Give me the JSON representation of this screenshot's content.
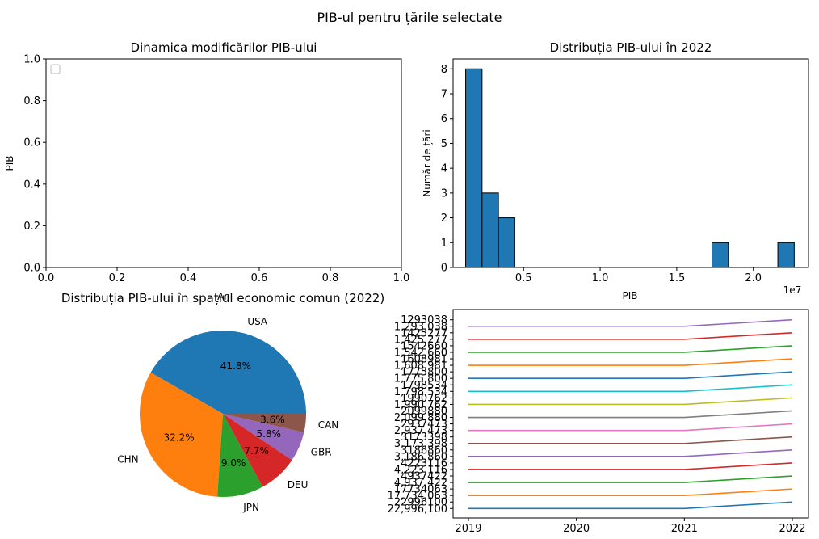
{
  "figure": {
    "title": "PIB-ul pentru țările selectate"
  },
  "chart_data": [
    {
      "type": "line",
      "title": "Dinamica modificărilor PIB-ului",
      "xlabel": "An",
      "ylabel": "PIB",
      "xlim": [
        0,
        1
      ],
      "ylim": [
        0,
        1
      ],
      "x_ticks": [
        "0.0",
        "0.2",
        "0.4",
        "0.6",
        "0.8",
        "1.0"
      ],
      "y_ticks": [
        "0.0",
        "0.2",
        "0.4",
        "0.6",
        "0.8",
        "1.0"
      ],
      "legend": "upper-left",
      "series": []
    },
    {
      "type": "bar",
      "title": "Distribuția PIB-ului în 2022",
      "xlabel": "PIB",
      "ylabel": "Număr de țări",
      "x_offset_text": "1e7",
      "xlim": [
        0.4,
        23.6
      ],
      "ylim": [
        0,
        8.4
      ],
      "x_ticks": [
        {
          "value": 5,
          "label": "0.5"
        },
        {
          "value": 10,
          "label": "1.0"
        },
        {
          "value": 15,
          "label": "1.5"
        },
        {
          "value": 20,
          "label": "2.0"
        }
      ],
      "y_ticks": [
        0,
        1,
        2,
        3,
        4,
        5,
        6,
        7,
        8
      ],
      "bin_width": 1.07,
      "bins": [
        {
          "start": 1.22,
          "count": 8
        },
        {
          "start": 2.29,
          "count": 3
        },
        {
          "start": 3.36,
          "count": 2
        },
        {
          "start": 17.3,
          "count": 1
        },
        {
          "start": 21.6,
          "count": 1
        }
      ],
      "color": "#1f77b4"
    },
    {
      "type": "pie",
      "title": "Distribuția PIB-ului în spațiul economic comun (2022)",
      "labels": [
        "USA",
        "CHN",
        "JPN",
        "DEU",
        "GBR",
        "CAN"
      ],
      "values": [
        41.8,
        32.2,
        9.0,
        7.7,
        5.8,
        3.6
      ],
      "pct_labels": [
        "41.8%",
        "32.2%",
        "9.0%",
        "7.7%",
        "5.8%",
        "3.6%"
      ],
      "colors": [
        "#1f77b4",
        "#ff7f0e",
        "#2ca02c",
        "#d62728",
        "#9467bd",
        "#8c564b"
      ]
    },
    {
      "type": "line",
      "x": [
        "2019",
        "2020",
        "2021",
        "2022"
      ],
      "y_ticks": [
        "1293038",
        "1,293,038",
        "1425277",
        "1,425,277",
        "1542660",
        "1,542,660",
        "1608981",
        "1,608,981",
        "1775800",
        "1,775,800",
        "1798534",
        "1,798,534",
        "1990762",
        "1,990,762",
        "2099880",
        "2,099,880",
        "2937473",
        "2,937,473",
        "3173398",
        "3,173,398",
        "3186860",
        "3,186,860",
        "4223116",
        "4,223,116",
        "4937422",
        "4,937,422",
        "17734063",
        "17,734,063",
        "22996100",
        "22,996,100"
      ],
      "series": [
        {
          "color": "#1f77b4",
          "values": [
            "22,996,100",
            "22,996,100",
            "22,996,100",
            "22996100"
          ]
        },
        {
          "color": "#ff7f0e",
          "values": [
            "17,734,063",
            "17,734,063",
            "17,734,063",
            "17734063"
          ]
        },
        {
          "color": "#2ca02c",
          "values": [
            "4,937,422",
            "4,937,422",
            "4,937,422",
            "4937422"
          ]
        },
        {
          "color": "#d62728",
          "values": [
            "4,223,116",
            "4,223,116",
            "4,223,116",
            "4223116"
          ]
        },
        {
          "color": "#9467bd",
          "values": [
            "3,186,860",
            "3,186,860",
            "3,186,860",
            "3186860"
          ]
        },
        {
          "color": "#8c564b",
          "values": [
            "3,173,398",
            "3,173,398",
            "3,173,398",
            "3173398"
          ]
        },
        {
          "color": "#e377c2",
          "values": [
            "2,937,473",
            "2,937,473",
            "2,937,473",
            "2937473"
          ]
        },
        {
          "color": "#7f7f7f",
          "values": [
            "2,099,880",
            "2,099,880",
            "2,099,880",
            "2099880"
          ]
        },
        {
          "color": "#bcbd22",
          "values": [
            "1,990,762",
            "1,990,762",
            "1,990,762",
            "1990762"
          ]
        },
        {
          "color": "#17becf",
          "values": [
            "1,798,534",
            "1,798,534",
            "1,798,534",
            "1798534"
          ]
        },
        {
          "color": "#1f77b4",
          "values": [
            "1,775,800",
            "1,775,800",
            "1,775,800",
            "1775800"
          ]
        },
        {
          "color": "#ff7f0e",
          "values": [
            "1,608,981",
            "1,608,981",
            "1,608,981",
            "1608981"
          ]
        },
        {
          "color": "#2ca02c",
          "values": [
            "1,542,660",
            "1,542,660",
            "1,542,660",
            "1542660"
          ]
        },
        {
          "color": "#d62728",
          "values": [
            "1,425,277",
            "1,425,277",
            "1,425,277",
            "1425277"
          ]
        },
        {
          "color": "#9467bd",
          "values": [
            "1,293,038",
            "1,293,038",
            "1,293,038",
            "1293038"
          ]
        }
      ]
    }
  ]
}
